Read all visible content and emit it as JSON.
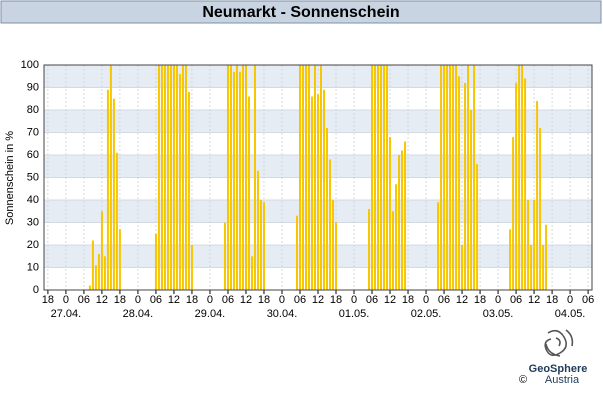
{
  "chart_data": {
    "type": "bar",
    "title": "Neumarkt - Sonnenschein",
    "y_label": "Sonnenschein in %",
    "color": "#f7c600",
    "grid": true,
    "x": [
      8,
      9,
      10,
      11,
      12,
      13,
      14,
      15,
      16,
      17,
      18,
      30,
      31,
      32,
      33,
      34,
      35,
      36,
      37,
      38,
      39,
      40,
      41,
      42,
      53,
      54,
      55,
      56,
      57,
      58,
      59,
      60,
      61,
      62,
      63,
      64,
      65,
      66,
      77,
      78,
      79,
      80,
      81,
      82,
      83,
      84,
      85,
      86,
      87,
      88,
      89,
      90,
      101,
      102,
      103,
      104,
      105,
      106,
      107,
      108,
      109,
      110,
      111,
      112,
      113,
      124,
      125,
      126,
      127,
      128,
      129,
      130,
      131,
      132,
      133,
      134,
      135,
      136,
      137,
      148,
      149,
      150,
      151,
      152,
      153,
      154,
      155,
      156,
      157,
      158,
      159,
      160
    ],
    "values": [
      2,
      22,
      11,
      16,
      35,
      15,
      89,
      100,
      85,
      61,
      27,
      25,
      100,
      100,
      100,
      100,
      100,
      100,
      100,
      96,
      100,
      100,
      88,
      20,
      30,
      100,
      100,
      97,
      100,
      97,
      100,
      100,
      86,
      15,
      100,
      53,
      40,
      39,
      33,
      100,
      100,
      100,
      100,
      86,
      100,
      87,
      100,
      89,
      72,
      58,
      40,
      30,
      36,
      100,
      100,
      100,
      100,
      100,
      100,
      68,
      35,
      47,
      60,
      62,
      66,
      39,
      100,
      100,
      100,
      100,
      100,
      100,
      95,
      20,
      92,
      100,
      80,
      100,
      56,
      27,
      68,
      92,
      100,
      100,
      94,
      40,
      20,
      40,
      84,
      72,
      20,
      29
    ],
    "xlim": [
      -7.3,
      175.3
    ],
    "ylim": [
      0,
      100
    ],
    "yticks": [
      0,
      10,
      20,
      30,
      40,
      50,
      60,
      70,
      80,
      90,
      100
    ],
    "xticks": [
      {
        "value": -6,
        "label": "18"
      },
      {
        "value": 0,
        "label": "0"
      },
      {
        "value": 6,
        "label": "06"
      },
      {
        "value": 12,
        "label": "12"
      },
      {
        "value": 18,
        "label": "18"
      },
      {
        "value": 24,
        "label": "0"
      },
      {
        "value": 30,
        "label": "06"
      },
      {
        "value": 36,
        "label": "12"
      },
      {
        "value": 42,
        "label": "18"
      },
      {
        "value": 48,
        "label": "0"
      },
      {
        "value": 54,
        "label": "06"
      },
      {
        "value": 60,
        "label": "12"
      },
      {
        "value": 66,
        "label": "18"
      },
      {
        "value": 72,
        "label": "0"
      },
      {
        "value": 78,
        "label": "06"
      },
      {
        "value": 84,
        "label": "12"
      },
      {
        "value": 90,
        "label": "18"
      },
      {
        "value": 96,
        "label": "0"
      },
      {
        "value": 102,
        "label": "06"
      },
      {
        "value": 108,
        "label": "12"
      },
      {
        "value": 114,
        "label": "18"
      },
      {
        "value": 120,
        "label": "0"
      },
      {
        "value": 126,
        "label": "06"
      },
      {
        "value": 132,
        "label": "12"
      },
      {
        "value": 138,
        "label": "18"
      },
      {
        "value": 144,
        "label": "0"
      },
      {
        "value": 150,
        "label": "06"
      },
      {
        "value": 156,
        "label": "12"
      },
      {
        "value": 162,
        "label": "18"
      },
      {
        "value": 168,
        "label": "0"
      },
      {
        "value": 174,
        "label": "06"
      }
    ],
    "day_ticks": [
      {
        "value": 0,
        "label": "27.04."
      },
      {
        "value": 24,
        "label": "28.04."
      },
      {
        "value": 48,
        "label": "29.04."
      },
      {
        "value": 72,
        "label": "30.04."
      },
      {
        "value": 96,
        "label": "01.05."
      },
      {
        "value": 120,
        "label": "02.05."
      },
      {
        "value": 144,
        "label": "03.05."
      },
      {
        "value": 168,
        "label": "04.05."
      }
    ]
  },
  "logo": {
    "copyright": "©",
    "name": "GeoSphere",
    "country": "Austria"
  }
}
